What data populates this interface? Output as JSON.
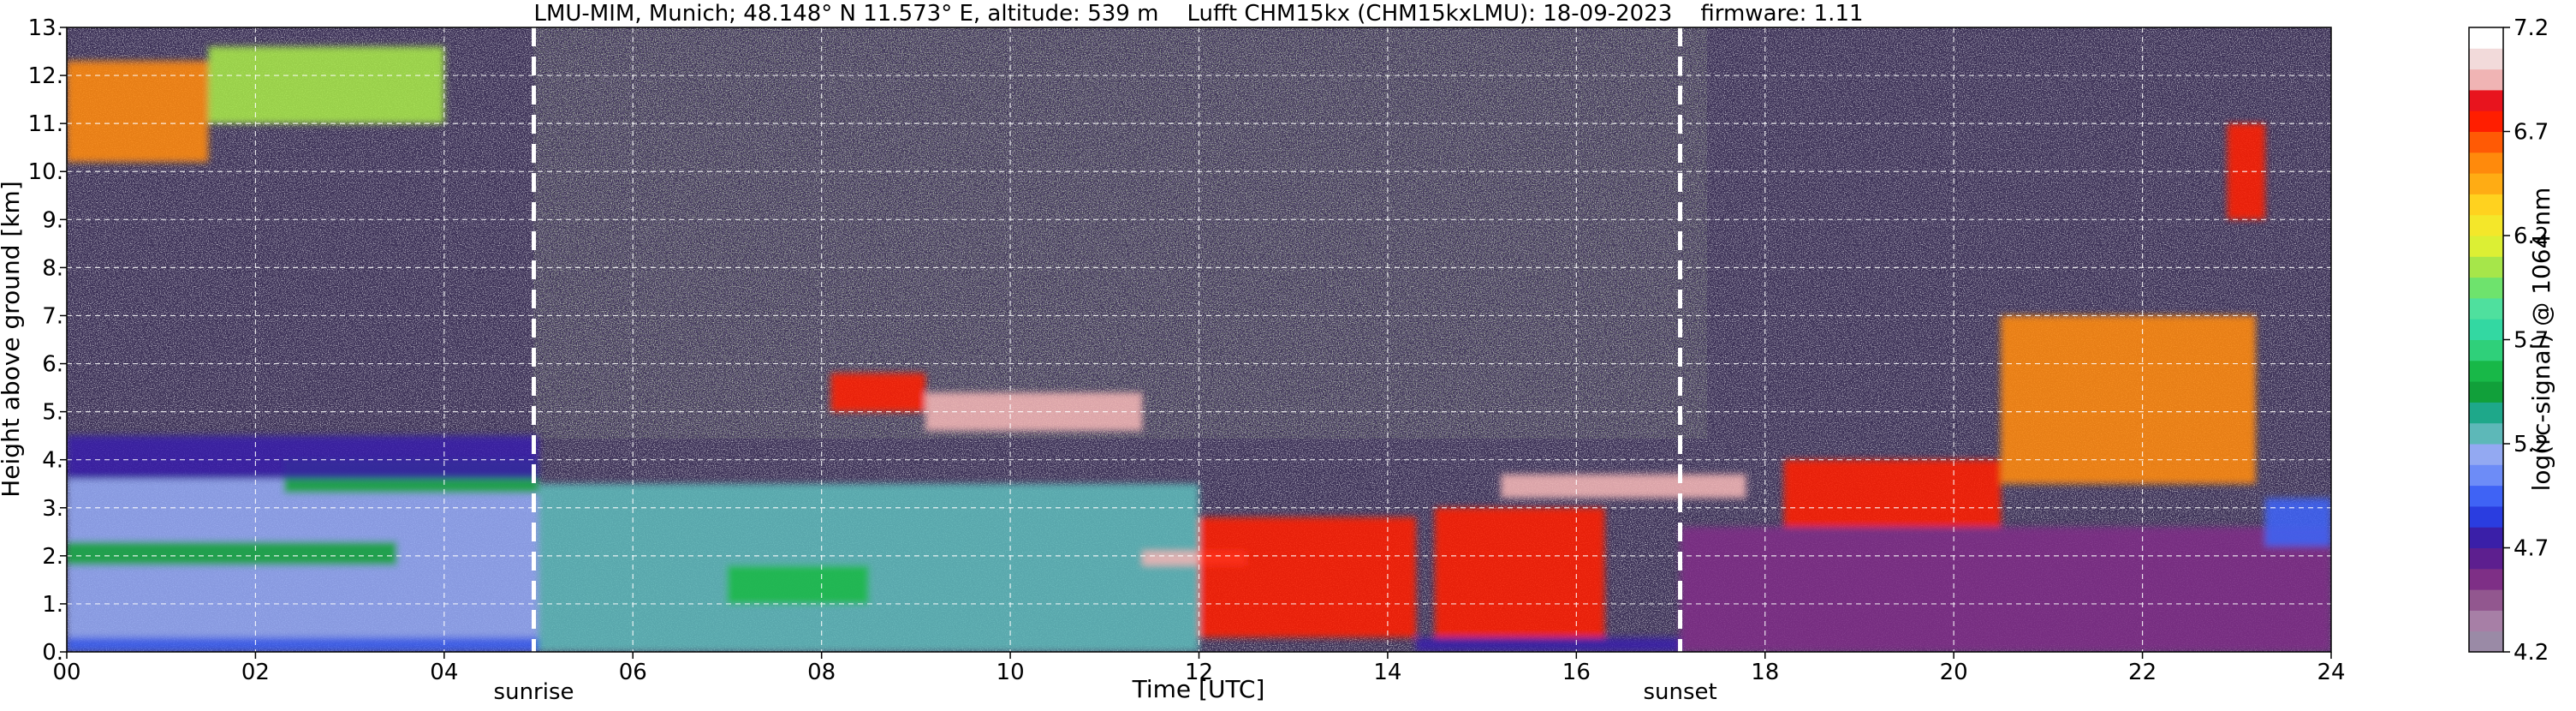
{
  "chart_data": {
    "type": "heatmap",
    "title": "LMU-MIM, Munich; 48.148° N 11.573° E, altitude: 539 m    Lufft CHM15kx (CHM15kxLMU): 18-09-2023    firmware: 1.11",
    "xlabel": "Time [UTC]",
    "ylabel": "Height above ground [km]",
    "xlim": [
      0,
      24
    ],
    "ylim": [
      0,
      13
    ],
    "x_ticks": [
      {
        "value": 0,
        "label": "00"
      },
      {
        "value": 2,
        "label": "02"
      },
      {
        "value": 4,
        "label": "04"
      },
      {
        "value": 6,
        "label": "06"
      },
      {
        "value": 8,
        "label": "08"
      },
      {
        "value": 10,
        "label": "10"
      },
      {
        "value": 12,
        "label": "12"
      },
      {
        "value": 14,
        "label": "14"
      },
      {
        "value": 16,
        "label": "16"
      },
      {
        "value": 18,
        "label": "18"
      },
      {
        "value": 20,
        "label": "20"
      },
      {
        "value": 22,
        "label": "22"
      },
      {
        "value": 24,
        "label": "24"
      }
    ],
    "y_ticks": [
      {
        "value": 0,
        "label": "0."
      },
      {
        "value": 1,
        "label": "1."
      },
      {
        "value": 2,
        "label": "2."
      },
      {
        "value": 3,
        "label": "3."
      },
      {
        "value": 4,
        "label": "4."
      },
      {
        "value": 5,
        "label": "5."
      },
      {
        "value": 6,
        "label": "6."
      },
      {
        "value": 7,
        "label": "7."
      },
      {
        "value": 8,
        "label": "8."
      },
      {
        "value": 9,
        "label": "9."
      },
      {
        "value": 10,
        "label": "10."
      },
      {
        "value": 11,
        "label": "11."
      },
      {
        "value": 12,
        "label": "12."
      },
      {
        "value": 13,
        "label": "13."
      }
    ],
    "grid": true,
    "markers": [
      {
        "time": 4.95,
        "label": "sunrise"
      },
      {
        "time": 17.1,
        "label": "sunset"
      }
    ],
    "colorbar": {
      "label": "log(rc-signal) @ 1064 nm",
      "range": [
        4.2,
        7.2
      ],
      "ticks": [
        {
          "value": 4.2,
          "label": "4.2"
        },
        {
          "value": 4.7,
          "label": "4.7"
        },
        {
          "value": 5.2,
          "label": "5.2"
        },
        {
          "value": 5.7,
          "label": "5.7"
        },
        {
          "value": 6.2,
          "label": "6.2"
        },
        {
          "value": 6.7,
          "label": "6.7"
        },
        {
          "value": 7.2,
          "label": "7.2"
        }
      ],
      "colors": [
        "#9a8aa6",
        "#a77fa6",
        "#92578f",
        "#7e2f86",
        "#5d1f8f",
        "#3a1fa8",
        "#2a3de0",
        "#3f63f5",
        "#6d8cf7",
        "#93a9f2",
        "#5db8b8",
        "#1ea88a",
        "#11a03a",
        "#18b848",
        "#2fd07a",
        "#33d8a2",
        "#4fe09e",
        "#6ee36d",
        "#a6e64a",
        "#dcef34",
        "#f4e72a",
        "#ffd21f",
        "#ffac14",
        "#ff8a0c",
        "#ff5a05",
        "#ff1e00",
        "#e8141e",
        "#f0b4b4",
        "#f2dada",
        "#ffffff"
      ]
    },
    "layers": [
      {
        "time_range": [
          0,
          5
        ],
        "height_range": [
          0,
          0.3
        ],
        "value": 5.0
      },
      {
        "time_range": [
          0,
          5
        ],
        "height_range": [
          0.3,
          3.6
        ],
        "value": 5.15
      },
      {
        "time_range": [
          0,
          3.5
        ],
        "height_range": [
          1.8,
          2.3
        ],
        "value": 5.5
      },
      {
        "time_range": [
          2.3,
          5
        ],
        "height_range": [
          3.3,
          4.0
        ],
        "value": 5.5
      },
      {
        "time_range": [
          0,
          5
        ],
        "height_range": [
          3.6,
          4.5
        ],
        "value": 4.8
      },
      {
        "time_range": [
          0,
          1.5
        ],
        "height_range": [
          10.2,
          12.3
        ],
        "value": 6.6
      },
      {
        "time_range": [
          1.5,
          4.0
        ],
        "height_range": [
          11.0,
          12.6
        ],
        "value": 6.0
      },
      {
        "time_range": [
          5,
          12
        ],
        "height_range": [
          0,
          3.5
        ],
        "value": 5.2
      },
      {
        "time_range": [
          7.0,
          8.5
        ],
        "height_range": [
          1.0,
          1.8
        ],
        "value": 5.6
      },
      {
        "time_range": [
          8.1,
          9.1
        ],
        "height_range": [
          5.0,
          5.8
        ],
        "value": 6.8
      },
      {
        "time_range": [
          9.1,
          11.4
        ],
        "height_range": [
          4.6,
          5.4
        ],
        "value": 7.0
      },
      {
        "time_range": [
          11.4,
          12.5
        ],
        "height_range": [
          1.8,
          2.1
        ],
        "value": 7.0
      },
      {
        "time_range": [
          12.0,
          14.3
        ],
        "height_range": [
          0.3,
          2.8
        ],
        "value": 6.8
      },
      {
        "time_range": [
          14.5,
          16.3
        ],
        "height_range": [
          0.3,
          3.0
        ],
        "value": 6.7
      },
      {
        "time_range": [
          14.3,
          17.1
        ],
        "height_range": [
          0,
          0.3
        ],
        "value": 4.7
      },
      {
        "time_range": [
          15.2,
          17.8
        ],
        "height_range": [
          3.2,
          3.7
        ],
        "value": 7.0
      },
      {
        "time_range": [
          17.1,
          24
        ],
        "height_range": [
          0,
          2.6
        ],
        "value": 4.6
      },
      {
        "time_range": [
          18.2,
          20.5
        ],
        "height_range": [
          2.6,
          4.0
        ],
        "value": 6.7
      },
      {
        "time_range": [
          20.5,
          23.2
        ],
        "height_range": [
          3.5,
          7.0
        ],
        "value": 6.5
      },
      {
        "time_range": [
          22.9,
          23.3
        ],
        "height_range": [
          9.0,
          11.0
        ],
        "value": 6.7
      },
      {
        "time_range": [
          23.3,
          24
        ],
        "height_range": [
          2.2,
          3.2
        ],
        "value": 5.0
      }
    ]
  }
}
